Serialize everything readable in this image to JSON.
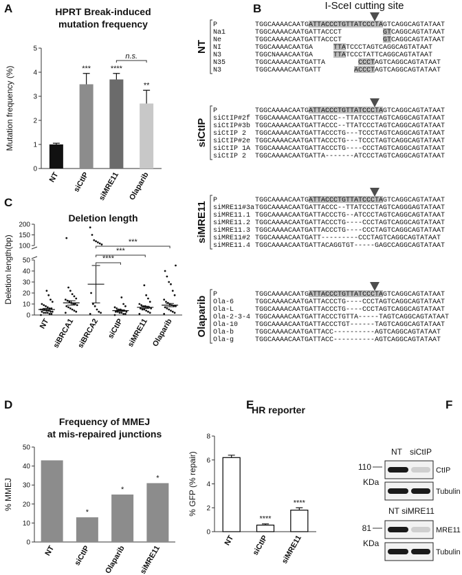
{
  "panel_letters": [
    "A",
    "B",
    "C",
    "D",
    "E",
    "F"
  ],
  "chart_data": [
    {
      "type": "bar",
      "title": [
        "HPRT Break-induced",
        "mutation frequency"
      ],
      "ylabel": "Mutation frequency (%)",
      "categories": [
        "NT",
        "siCtIP",
        "siMRE11",
        "Olaparib"
      ],
      "values": [
        1.0,
        3.5,
        3.7,
        2.7
      ],
      "errors": [
        0.05,
        0.45,
        0.25,
        0.55
      ],
      "colors": [
        "#111111",
        "#8c8c8c",
        "#6b6b6b",
        "#c8c8c8"
      ],
      "significance": [
        null,
        "***",
        "****",
        "**"
      ],
      "brackets": [
        {
          "from": 2,
          "to": 3,
          "label": "n.s."
        }
      ],
      "ylim": [
        0,
        5
      ],
      "yticks": [
        0,
        1,
        2,
        3,
        4,
        5
      ]
    },
    {
      "type": "scatter",
      "title": "Deletion length",
      "ylabel": "Deletion length(bp)",
      "categories": [
        "NT",
        "siBRCA1",
        "siBRCA2",
        "siCtIP",
        "siMRE11",
        "Olaparib"
      ],
      "points": [
        [
          0,
          1,
          1,
          2,
          2,
          2,
          3,
          3,
          3,
          4,
          4,
          5,
          5,
          5,
          6,
          6,
          7,
          8,
          9,
          10,
          12,
          14,
          18,
          22
        ],
        [
          2,
          3,
          4,
          5,
          6,
          7,
          8,
          9,
          10,
          10,
          11,
          12,
          13,
          14,
          15,
          17,
          19,
          22,
          25,
          135
        ],
        [
          1,
          2,
          3,
          5,
          8,
          10,
          20,
          105,
          110,
          115,
          120,
          125,
          150,
          185
        ],
        [
          0,
          1,
          1,
          2,
          2,
          3,
          3,
          3,
          4,
          4,
          5,
          5,
          6,
          7,
          8,
          10,
          16
        ],
        [
          1,
          2,
          3,
          4,
          5,
          5,
          6,
          6,
          7,
          7,
          8,
          8,
          9,
          10,
          12,
          15,
          18,
          27
        ],
        [
          1,
          2,
          3,
          4,
          5,
          6,
          7,
          8,
          8,
          9,
          10,
          11,
          12,
          14,
          18,
          22,
          28,
          30,
          35,
          40,
          45
        ]
      ],
      "means": [
        5,
        11,
        28,
        4,
        7,
        9
      ],
      "errors": [
        1,
        2,
        17,
        0.7,
        1,
        1.5
      ],
      "color": "#111111",
      "brackets": [
        {
          "from": 2,
          "to": 3,
          "label": "****"
        },
        {
          "from": 2,
          "to": 4,
          "label": "***"
        },
        {
          "from": 2,
          "to": 5,
          "label": "***"
        }
      ],
      "ylim_segments": [
        [
          0,
          50
        ],
        [
          100,
          200
        ]
      ],
      "yticks": [
        0,
        10,
        20,
        30,
        40,
        50,
        100,
        150,
        200
      ]
    },
    {
      "type": "bar",
      "title": [
        "Frequency of MMEJ",
        "at  mis-repaired junctions"
      ],
      "ylabel": "% MMEJ",
      "categories": [
        "NT",
        "siCtIP",
        "Olaparib",
        "siMRE11"
      ],
      "values": [
        43,
        13,
        25,
        31
      ],
      "color": "#8c8c8c",
      "significance": [
        null,
        "*",
        "*",
        "*"
      ],
      "ylim": [
        0,
        50
      ],
      "yticks": [
        0,
        10,
        20,
        30,
        40,
        50
      ]
    },
    {
      "type": "bar",
      "title": "HR reporter",
      "ylabel": "% GFP (% repair)",
      "categories": [
        "NT",
        "siCtIP",
        "siMRE11"
      ],
      "values": [
        6.2,
        0.55,
        1.8
      ],
      "errors": [
        0.2,
        0.1,
        0.2
      ],
      "color": "#ffffff",
      "edgecolor": "#000000",
      "significance": [
        null,
        "****",
        "****"
      ],
      "ylim": [
        0,
        8
      ],
      "yticks": [
        0,
        2,
        4,
        6,
        8
      ]
    }
  ],
  "alignment": {
    "title": "I-SceI cutting site",
    "groups": [
      {
        "label": "NT",
        "rows": [
          [
            "P",
            "TGGCAAAACAATGATTACCCTGTTATCCCTAGTCAGGCAGTATAAT"
          ],
          [
            "Na1",
            "TGGCAAAACAATGATTACCCT          GTCAGGCAGTATAAT"
          ],
          [
            "Ne",
            "TGGCAAAACAATGATTACCCT          GTCAGGCAGTATAAT"
          ],
          [
            "NI",
            "TGGCAAAACAATGA     TTATCCCTAGTCAGGCAGTATAAT"
          ],
          [
            "N3",
            "TGGCNAAACAATGA     TTATCCCTATTCAGGCAGTATAAT"
          ],
          [
            "N35",
            "TGGCAAAACAATGATTA        CCCTAGTCAGGCAGTATAAT"
          ],
          [
            "N3",
            "TGGCAAAACAATGATT        ACCCTAGTCAGGCAGTATAAT"
          ]
        ]
      },
      {
        "label": "siCtIP",
        "rows": [
          [
            "P",
            "TGGCAAAACAATGATTACCCTGTTATCCCTAGTCAGGCAGTATAAT"
          ],
          [
            "siCtIP#2f",
            "TGGCAAAACAATGATTACCC--TTATCCCTAGTCAGGCAGTATAAT"
          ],
          [
            "siCtIP#3b",
            "TGGCAAAACAATGATTACCC--TTATCCCTAGTCAGGCAGTATAAT"
          ],
          [
            "siCtIP 2",
            "TGGCAAAACAATGATTACCCTG---TCCCTAGTCAGGCAGTATAAT"
          ],
          [
            "siCtIP#2e",
            "TGGCAAAACAATGATTACCCTG---TCCCTAGTCAGGCAGTATAAT"
          ],
          [
            "siCtIP 1A",
            "TGGCAAAACAATGATTACCCTG----CCCTAGTCAGGCAGTATAAT"
          ],
          [
            "siCtIP 2",
            "TGGCAAAACAATGATTA-------ATCCCTAGTCAGGCAGTATAAT"
          ]
        ]
      },
      {
        "label": "siMRE11",
        "rows": [
          [
            "P",
            "TGGCAAAACAATGATTACCCTGTTATCCCTAGTCAGGCAGTATAAT"
          ],
          [
            "siMRE11#3a",
            "TGGCAAAACAATGATTACCC--TTATCCCTAGTCAGGGAGTATAAT"
          ],
          [
            "siMRE11.1",
            "TGGCAAAACAATGATTACCCTG--ATCCCTAGTCAGGCAGTATAAT"
          ],
          [
            "siMRE11.2",
            "TGGCAAAACAATGATTACCCTG----CCCTAGTCAGGCAGTATAAT"
          ],
          [
            "siMRE11.3",
            "TGGCAAAACAATGATTACCCTG----CCCTAGTCAGGCAGTATAAT"
          ],
          [
            "siMRE11#2",
            "TGGCAAAACAATGATT---------CCCTAGTCAGGCAGTATAAT"
          ],
          [
            "siMRE11.4",
            "TGGCAAAACAATGATTACAGGTGT-----GAGCCAGGCAGTATAAT"
          ]
        ]
      },
      {
        "label": "Olaparib",
        "rows": [
          [
            "P",
            "TGGCAAAACAATGATTACCCTGTTATCCCTAGTCAGGCAGTATAAT"
          ],
          [
            "Ola-6",
            "TGGCAAAACAATGATTACCCTG----CCCTAGTCAGGCAGTATAAT"
          ],
          [
            "Ola-L",
            "TGGCAAAACAATGATTACCCTG----CCCTAGTCAGGCAGTATAAT"
          ],
          [
            "Ola-2-3-4",
            "TGGCAAAACAATGATTACCCTGTTA-----TAGTCAGGCAGTATAAT"
          ],
          [
            "Ola-10",
            "TGGCAAAACAATGATTACCCTGT------TAGTCAGGCAGTATAAT"
          ],
          [
            "Ola-b",
            "TGGCAAAACAATGATTACC----------AGTCAGGCAGTATAAT"
          ],
          [
            "Ola-g",
            "TGGCAAAACAATGATTACC----------AGTCAGGCAGTATAAT"
          ]
        ]
      }
    ]
  },
  "blots": [
    {
      "lanes": [
        "NT",
        "siCtIP"
      ],
      "marker": "110",
      "unit": "KDa",
      "bands": [
        "CtIP",
        "Tubulin"
      ]
    },
    {
      "lanes": [
        "NT",
        "siMRE11"
      ],
      "marker": "81",
      "unit": "KDa",
      "bands": [
        "MRE11",
        "Tubulin"
      ]
    }
  ]
}
